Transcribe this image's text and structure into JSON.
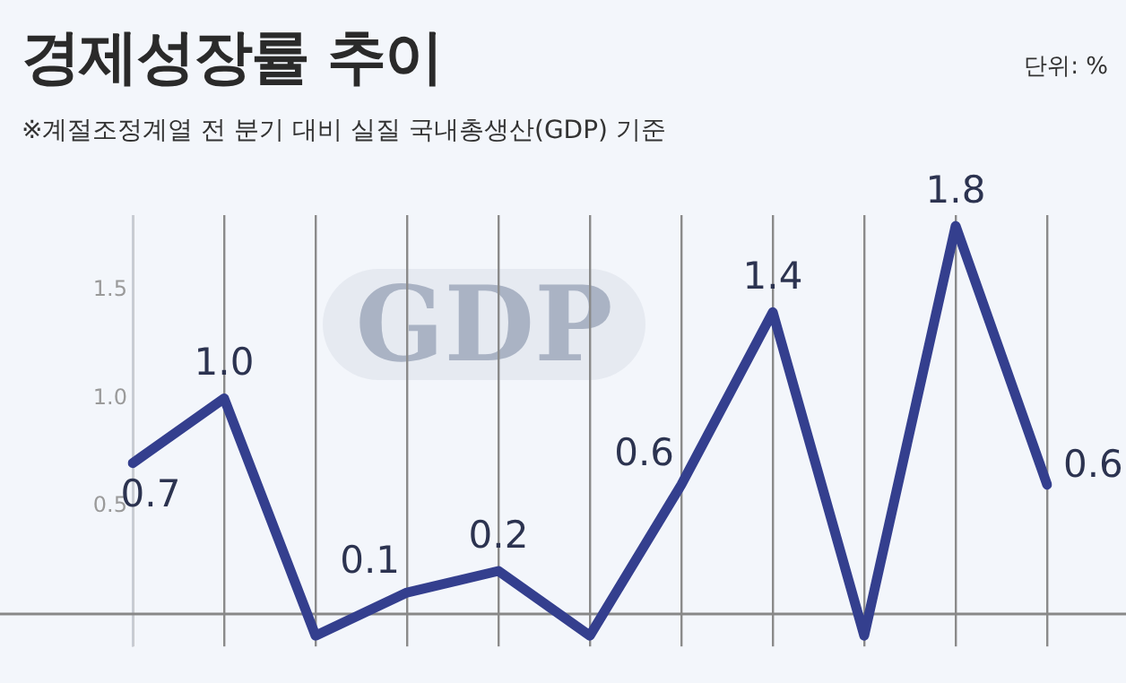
{
  "chart_data": {
    "type": "line",
    "title": "경제성장률 추이",
    "subtitle": "※계절조정계열 전 분기 대비 실질 국내총생산(GDP) 기준",
    "annotations": [
      "단위: %",
      "GDP"
    ],
    "categories": [
      null,
      null,
      null,
      null,
      null,
      null,
      null,
      null,
      null,
      null,
      null
    ],
    "series": [
      {
        "color": "#343f8e",
        "values": [
          0.7,
          1.0,
          -0.1,
          0.1,
          0.2,
          -0.1,
          0.6,
          1.4,
          -0.1,
          1.8,
          0.6
        ],
        "value_labels": [
          "0.7",
          "1.0",
          null,
          "0.1",
          "0.2",
          null,
          "0.6",
          "1.4",
          null,
          "1.8",
          "0.6"
        ]
      }
    ],
    "ylim": [
      -0.15,
      1.85
    ],
    "yticks": [
      {
        "value": 0.5,
        "label": "0.5"
      },
      {
        "value": 1,
        "label": "1.0"
      },
      {
        "value": 1.5,
        "label": "1.5"
      }
    ],
    "ref_lines": [
      {
        "axis": "y",
        "value": 0,
        "color": "#888888"
      }
    ],
    "grid": "x",
    "legend": false,
    "marker": "none",
    "line_style": "solid"
  }
}
